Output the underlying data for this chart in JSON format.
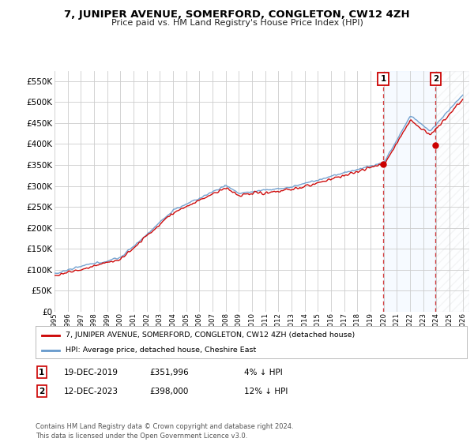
{
  "title": "7, JUNIPER AVENUE, SOMERFORD, CONGLETON, CW12 4ZH",
  "subtitle": "Price paid vs. HM Land Registry's House Price Index (HPI)",
  "legend_label_red": "7, JUNIPER AVENUE, SOMERFORD, CONGLETON, CW12 4ZH (detached house)",
  "legend_label_blue": "HPI: Average price, detached house, Cheshire East",
  "annotation1_date": "19-DEC-2019",
  "annotation1_price": "£351,996",
  "annotation1_hpi": "4% ↓ HPI",
  "annotation2_date": "12-DEC-2023",
  "annotation2_price": "£398,000",
  "annotation2_hpi": "12% ↓ HPI",
  "footer": "Contains HM Land Registry data © Crown copyright and database right 2024.\nThis data is licensed under the Open Government Licence v3.0.",
  "ylim": [
    0,
    575000
  ],
  "yticks": [
    0,
    50000,
    100000,
    150000,
    200000,
    250000,
    300000,
    350000,
    400000,
    450000,
    500000,
    550000
  ],
  "x_start_year": 1995,
  "x_end_year": 2026,
  "marker1_year": 2019.96,
  "marker1_price": 351996,
  "marker2_year": 2023.95,
  "marker2_price": 398000,
  "background_color": "#ffffff",
  "plot_bg_color": "#ffffff",
  "grid_color": "#cccccc",
  "red_color": "#cc0000",
  "blue_color": "#6699cc",
  "shade_color": "#ddeeff"
}
